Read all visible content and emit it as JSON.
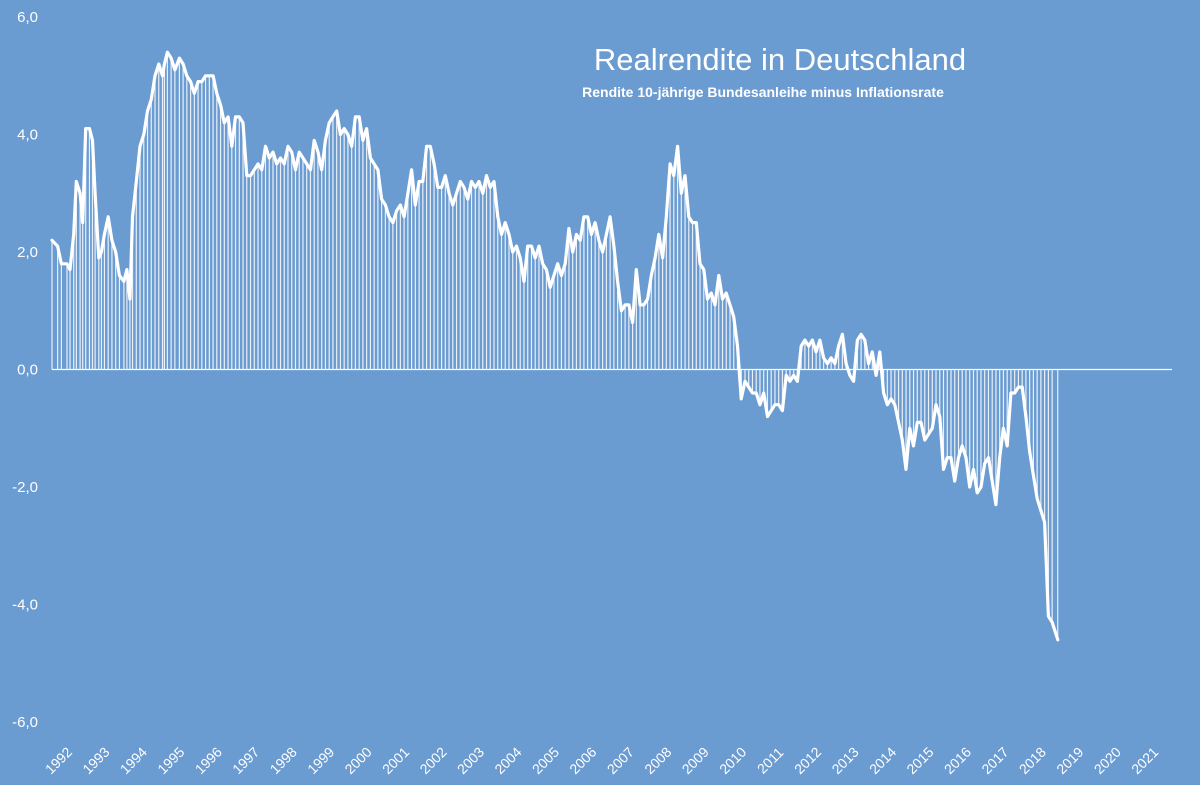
{
  "chart_data": {
    "type": "line",
    "title": "Realrendite in Deutschland",
    "subtitle": "Rendite 10-jährige Bundesanleihe minus Inflationsrate",
    "xlabel": "",
    "ylabel": "",
    "ylim": [
      -6,
      6
    ],
    "y_ticks": [
      "6,0",
      "4,0",
      "2,0",
      "0,0",
      "-2,0",
      "-4,0",
      "-6,0"
    ],
    "x_ticks": [
      "1992",
      "1993",
      "1994",
      "1995",
      "1996",
      "1997",
      "1998",
      "1999",
      "2000",
      "2001",
      "2002",
      "2003",
      "2004",
      "2005",
      "2006",
      "2007",
      "2008",
      "2009",
      "2010",
      "2011",
      "2012",
      "2013",
      "2014",
      "2015",
      "2016",
      "2017",
      "2018",
      "2019",
      "2020",
      "2021"
    ],
    "x_range": [
      1992.0,
      2021.9
    ],
    "grid": false,
    "legend": "none",
    "fill_style": "vertical bars to zero",
    "colors": {
      "background": "#6a9bd1",
      "line": "#ffffff"
    },
    "series": [
      {
        "points": [
          [
            1992.0,
            2.2
          ],
          [
            1992.15,
            2.1
          ],
          [
            1992.25,
            1.8
          ],
          [
            1992.4,
            1.8
          ],
          [
            1992.48,
            1.7
          ],
          [
            1992.58,
            2.3
          ],
          [
            1992.65,
            3.2
          ],
          [
            1992.75,
            3.0
          ],
          [
            1992.82,
            2.5
          ],
          [
            1992.9,
            4.1
          ],
          [
            1993.0,
            4.1
          ],
          [
            1993.08,
            3.9
          ],
          [
            1993.15,
            3.0
          ],
          [
            1993.25,
            1.9
          ],
          [
            1993.32,
            2.0
          ],
          [
            1993.4,
            2.3
          ],
          [
            1993.5,
            2.6
          ],
          [
            1993.6,
            2.2
          ],
          [
            1993.7,
            2.0
          ],
          [
            1993.8,
            1.6
          ],
          [
            1993.92,
            1.5
          ],
          [
            1994.0,
            1.7
          ],
          [
            1994.08,
            1.2
          ],
          [
            1994.15,
            2.6
          ],
          [
            1994.25,
            3.2
          ],
          [
            1994.35,
            3.8
          ],
          [
            1994.45,
            4.0
          ],
          [
            1994.55,
            4.4
          ],
          [
            1994.65,
            4.6
          ],
          [
            1994.75,
            5.0
          ],
          [
            1994.85,
            5.2
          ],
          [
            1994.95,
            5.0
          ],
          [
            1995.0,
            5.2
          ],
          [
            1995.08,
            5.4
          ],
          [
            1995.18,
            5.3
          ],
          [
            1995.28,
            5.1
          ],
          [
            1995.4,
            5.3
          ],
          [
            1995.5,
            5.2
          ],
          [
            1995.6,
            5.0
          ],
          [
            1995.7,
            4.9
          ],
          [
            1995.8,
            4.7
          ],
          [
            1995.9,
            4.9
          ],
          [
            1996.0,
            4.9
          ],
          [
            1996.1,
            5.0
          ],
          [
            1996.2,
            5.0
          ],
          [
            1996.3,
            5.0
          ],
          [
            1996.4,
            4.7
          ],
          [
            1996.5,
            4.5
          ],
          [
            1996.6,
            4.2
          ],
          [
            1996.7,
            4.3
          ],
          [
            1996.8,
            3.8
          ],
          [
            1996.9,
            4.3
          ],
          [
            1997.0,
            4.3
          ],
          [
            1997.1,
            4.2
          ],
          [
            1997.2,
            3.3
          ],
          [
            1997.3,
            3.3
          ],
          [
            1997.4,
            3.4
          ],
          [
            1997.5,
            3.5
          ],
          [
            1997.6,
            3.4
          ],
          [
            1997.7,
            3.8
          ],
          [
            1997.8,
            3.6
          ],
          [
            1997.9,
            3.7
          ],
          [
            1998.0,
            3.5
          ],
          [
            1998.1,
            3.6
          ],
          [
            1998.2,
            3.5
          ],
          [
            1998.3,
            3.8
          ],
          [
            1998.4,
            3.7
          ],
          [
            1998.5,
            3.4
          ],
          [
            1998.6,
            3.7
          ],
          [
            1998.7,
            3.6
          ],
          [
            1998.8,
            3.5
          ],
          [
            1998.9,
            3.4
          ],
          [
            1999.0,
            3.9
          ],
          [
            1999.1,
            3.7
          ],
          [
            1999.2,
            3.4
          ],
          [
            1999.3,
            3.9
          ],
          [
            1999.4,
            4.2
          ],
          [
            1999.5,
            4.3
          ],
          [
            1999.6,
            4.4
          ],
          [
            1999.7,
            4.0
          ],
          [
            1999.8,
            4.1
          ],
          [
            1999.9,
            4.0
          ],
          [
            2000.0,
            3.8
          ],
          [
            2000.1,
            4.3
          ],
          [
            2000.2,
            4.3
          ],
          [
            2000.3,
            3.9
          ],
          [
            2000.4,
            4.1
          ],
          [
            2000.5,
            3.6
          ],
          [
            2000.6,
            3.5
          ],
          [
            2000.7,
            3.4
          ],
          [
            2000.8,
            2.9
          ],
          [
            2000.9,
            2.8
          ],
          [
            2001.0,
            2.6
          ],
          [
            2001.1,
            2.5
          ],
          [
            2001.2,
            2.7
          ],
          [
            2001.3,
            2.8
          ],
          [
            2001.4,
            2.6
          ],
          [
            2001.5,
            3.0
          ],
          [
            2001.6,
            3.4
          ],
          [
            2001.7,
            2.8
          ],
          [
            2001.8,
            3.2
          ],
          [
            2001.9,
            3.2
          ],
          [
            2002.0,
            3.8
          ],
          [
            2002.1,
            3.8
          ],
          [
            2002.2,
            3.5
          ],
          [
            2002.3,
            3.1
          ],
          [
            2002.4,
            3.1
          ],
          [
            2002.5,
            3.3
          ],
          [
            2002.6,
            3.0
          ],
          [
            2002.7,
            2.8
          ],
          [
            2002.8,
            3.0
          ],
          [
            2002.9,
            3.2
          ],
          [
            2003.0,
            3.1
          ],
          [
            2003.1,
            2.9
          ],
          [
            2003.2,
            3.2
          ],
          [
            2003.3,
            3.1
          ],
          [
            2003.4,
            3.2
          ],
          [
            2003.5,
            3.0
          ],
          [
            2003.6,
            3.3
          ],
          [
            2003.7,
            3.1
          ],
          [
            2003.8,
            3.2
          ],
          [
            2003.9,
            2.6
          ],
          [
            2004.0,
            2.3
          ],
          [
            2004.1,
            2.5
          ],
          [
            2004.2,
            2.3
          ],
          [
            2004.3,
            2.0
          ],
          [
            2004.4,
            2.1
          ],
          [
            2004.5,
            1.9
          ],
          [
            2004.6,
            1.5
          ],
          [
            2004.7,
            2.1
          ],
          [
            2004.8,
            2.1
          ],
          [
            2004.9,
            1.9
          ],
          [
            2005.0,
            2.1
          ],
          [
            2005.1,
            1.8
          ],
          [
            2005.2,
            1.7
          ],
          [
            2005.3,
            1.4
          ],
          [
            2005.4,
            1.6
          ],
          [
            2005.5,
            1.8
          ],
          [
            2005.6,
            1.6
          ],
          [
            2005.7,
            1.8
          ],
          [
            2005.8,
            2.4
          ],
          [
            2005.9,
            2.0
          ],
          [
            2006.0,
            2.3
          ],
          [
            2006.1,
            2.2
          ],
          [
            2006.2,
            2.6
          ],
          [
            2006.3,
            2.6
          ],
          [
            2006.4,
            2.3
          ],
          [
            2006.5,
            2.5
          ],
          [
            2006.6,
            2.2
          ],
          [
            2006.7,
            2.0
          ],
          [
            2006.8,
            2.3
          ],
          [
            2006.9,
            2.6
          ],
          [
            2007.0,
            2.1
          ],
          [
            2007.1,
            1.5
          ],
          [
            2007.2,
            1.0
          ],
          [
            2007.3,
            1.1
          ],
          [
            2007.4,
            1.1
          ],
          [
            2007.5,
            0.8
          ],
          [
            2007.6,
            1.7
          ],
          [
            2007.7,
            1.1
          ],
          [
            2007.8,
            1.1
          ],
          [
            2007.9,
            1.2
          ],
          [
            2008.0,
            1.6
          ],
          [
            2008.1,
            1.9
          ],
          [
            2008.2,
            2.3
          ],
          [
            2008.3,
            1.9
          ],
          [
            2008.4,
            2.6
          ],
          [
            2008.5,
            3.5
          ],
          [
            2008.6,
            3.3
          ],
          [
            2008.7,
            3.8
          ],
          [
            2008.8,
            3.0
          ],
          [
            2008.9,
            3.3
          ],
          [
            2009.0,
            2.6
          ],
          [
            2009.1,
            2.5
          ],
          [
            2009.2,
            2.5
          ],
          [
            2009.3,
            1.8
          ],
          [
            2009.4,
            1.7
          ],
          [
            2009.5,
            1.2
          ],
          [
            2009.6,
            1.3
          ],
          [
            2009.7,
            1.1
          ],
          [
            2009.8,
            1.6
          ],
          [
            2009.9,
            1.2
          ],
          [
            2010.0,
            1.3
          ],
          [
            2010.1,
            1.1
          ],
          [
            2010.2,
            0.9
          ],
          [
            2010.3,
            0.4
          ],
          [
            2010.4,
            -0.5
          ],
          [
            2010.5,
            -0.2
          ],
          [
            2010.6,
            -0.3
          ],
          [
            2010.7,
            -0.4
          ],
          [
            2010.8,
            -0.4
          ],
          [
            2010.9,
            -0.6
          ],
          [
            2011.0,
            -0.4
          ],
          [
            2011.1,
            -0.8
          ],
          [
            2011.2,
            -0.7
          ],
          [
            2011.3,
            -0.6
          ],
          [
            2011.4,
            -0.6
          ],
          [
            2011.5,
            -0.7
          ],
          [
            2011.6,
            -0.1
          ],
          [
            2011.7,
            -0.2
          ],
          [
            2011.8,
            -0.1
          ],
          [
            2011.9,
            -0.2
          ],
          [
            2012.0,
            0.4
          ],
          [
            2012.1,
            0.5
          ],
          [
            2012.2,
            0.4
          ],
          [
            2012.3,
            0.5
          ],
          [
            2012.4,
            0.3
          ],
          [
            2012.5,
            0.5
          ],
          [
            2012.6,
            0.2
          ],
          [
            2012.7,
            0.1
          ],
          [
            2012.8,
            0.2
          ],
          [
            2012.9,
            0.1
          ],
          [
            2013.0,
            0.4
          ],
          [
            2013.1,
            0.6
          ],
          [
            2013.2,
            0.1
          ],
          [
            2013.3,
            -0.1
          ],
          [
            2013.4,
            -0.2
          ],
          [
            2013.5,
            0.5
          ],
          [
            2013.6,
            0.6
          ],
          [
            2013.7,
            0.5
          ],
          [
            2013.8,
            0.1
          ],
          [
            2013.9,
            0.3
          ],
          [
            2014.0,
            -0.1
          ],
          [
            2014.1,
            0.3
          ],
          [
            2014.2,
            -0.4
          ],
          [
            2014.3,
            -0.6
          ],
          [
            2014.4,
            -0.5
          ],
          [
            2014.5,
            -0.6
          ],
          [
            2014.6,
            -0.9
          ],
          [
            2014.7,
            -1.2
          ],
          [
            2014.8,
            -1.7
          ],
          [
            2014.9,
            -1.0
          ],
          [
            2015.0,
            -1.3
          ],
          [
            2015.1,
            -0.9
          ],
          [
            2015.2,
            -0.9
          ],
          [
            2015.3,
            -1.2
          ],
          [
            2015.4,
            -1.1
          ],
          [
            2015.5,
            -1.0
          ],
          [
            2015.6,
            -0.6
          ],
          [
            2015.7,
            -0.8
          ],
          [
            2015.8,
            -1.7
          ],
          [
            2015.9,
            -1.5
          ],
          [
            2016.0,
            -1.5
          ],
          [
            2016.1,
            -1.9
          ],
          [
            2016.2,
            -1.5
          ],
          [
            2016.3,
            -1.3
          ],
          [
            2016.4,
            -1.5
          ],
          [
            2016.5,
            -2.0
          ],
          [
            2016.6,
            -1.7
          ],
          [
            2016.7,
            -2.1
          ],
          [
            2016.8,
            -2.0
          ],
          [
            2016.9,
            -1.6
          ],
          [
            2017.0,
            -1.5
          ],
          [
            2017.1,
            -1.9
          ],
          [
            2017.2,
            -2.3
          ],
          [
            2017.3,
            -1.5
          ],
          [
            2017.4,
            -1.0
          ],
          [
            2017.5,
            -1.3
          ],
          [
            2017.6,
            -0.4
          ],
          [
            2017.7,
            -0.4
          ],
          [
            2017.8,
            -0.3
          ],
          [
            2017.9,
            -0.3
          ],
          [
            2018.0,
            -0.8
          ],
          [
            2018.1,
            -1.4
          ],
          [
            2018.2,
            -1.8
          ],
          [
            2018.3,
            -2.2
          ],
          [
            2018.4,
            -2.4
          ],
          [
            2018.5,
            -2.6
          ],
          [
            2018.6,
            -4.2
          ],
          [
            2018.7,
            -4.3
          ],
          [
            2018.85,
            -4.6
          ]
        ]
      }
    ]
  }
}
